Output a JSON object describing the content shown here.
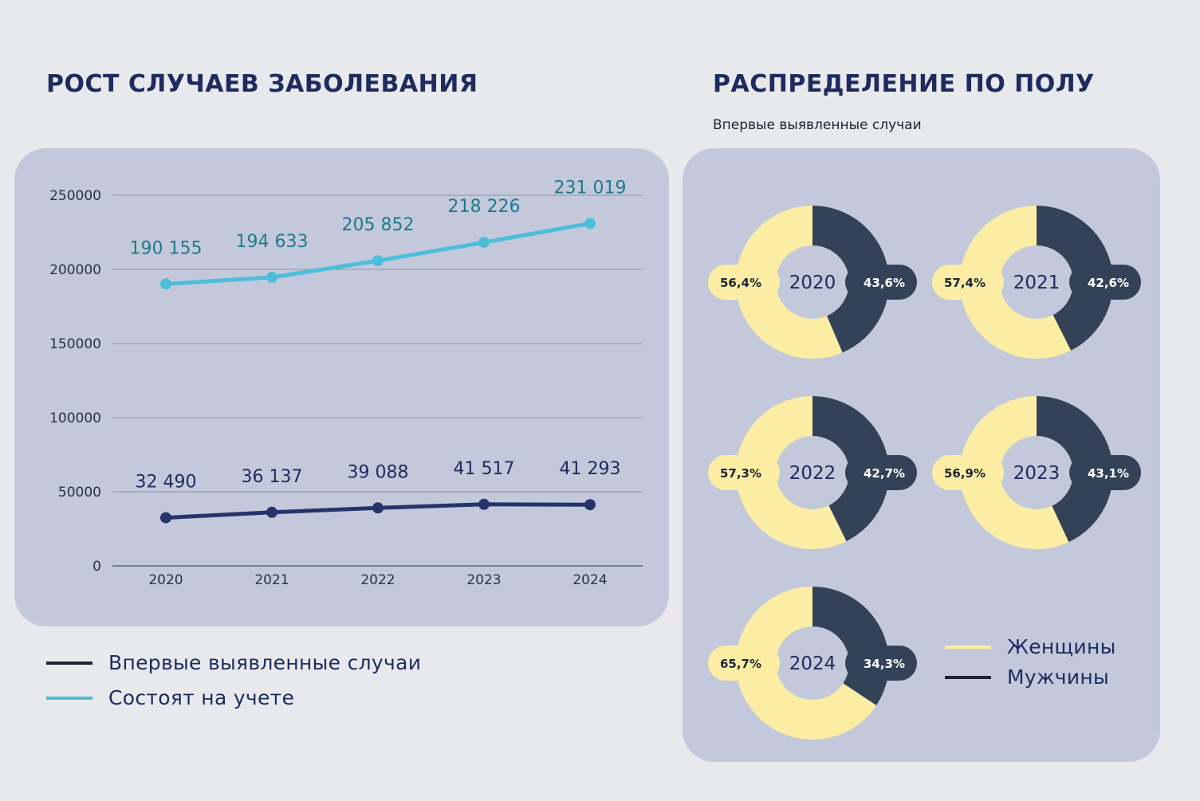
{
  "left": {
    "title": "РОСТ СЛУЧАЕВ ЗАБОЛЕВАНИЯ",
    "legend": [
      {
        "label": "Впервые выявленные случаи",
        "color": "#1e2433"
      },
      {
        "label": "Состоят на учете",
        "color": "#4dbdd9"
      }
    ]
  },
  "right": {
    "title": "РАСПРЕДЕЛЕНИЕ ПО ПОЛУ",
    "subtitle": "Впервые выявленные случаи",
    "legend": [
      {
        "label": "Женщины",
        "color": "#fbeea4"
      },
      {
        "label": "Мужчины",
        "color": "#1e2433"
      }
    ]
  },
  "chart_data": [
    {
      "type": "line",
      "categories": [
        "2020",
        "2021",
        "2022",
        "2023",
        "2024"
      ],
      "y_ticks": [
        "0",
        "50000",
        "100000",
        "150000",
        "200000",
        "250000"
      ],
      "ylim": [
        0,
        250000
      ],
      "grid": true,
      "series": [
        {
          "name": "Состоят на учете",
          "color": "#4dbdd9",
          "label_color": "#1e7a8c",
          "values": [
            190155,
            194633,
            205852,
            218226,
            231019
          ],
          "labels": [
            "190 155",
            "194 633",
            "205 852",
            "218 226",
            "231 019"
          ]
        },
        {
          "name": "Впервые выявленные случаи",
          "color": "#26346b",
          "label_color": "#1d2b5e",
          "values": [
            32490,
            36137,
            39088,
            41517,
            41293
          ],
          "labels": [
            "32 490",
            "36 137",
            "39 088",
            "41 517",
            "41 293"
          ]
        }
      ]
    },
    {
      "type": "pie",
      "variant": "donut",
      "legend": "right",
      "colors": {
        "women": "#fbeea4",
        "men": "#344257"
      },
      "donuts": [
        {
          "year": "2020",
          "women": 56.4,
          "men": 43.6,
          "women_label": "56,4%",
          "men_label": "43,6%"
        },
        {
          "year": "2021",
          "women": 57.4,
          "men": 42.6,
          "women_label": "57,4%",
          "men_label": "42,6%"
        },
        {
          "year": "2022",
          "women": 57.3,
          "men": 42.7,
          "women_label": "57,3%",
          "men_label": "42,7%"
        },
        {
          "year": "2023",
          "women": 56.9,
          "men": 43.1,
          "women_label": "56,9%",
          "men_label": "43,1%"
        },
        {
          "year": "2024",
          "women": 65.7,
          "men": 34.3,
          "women_label": "65,7%",
          "men_label": "34,3%"
        }
      ]
    }
  ]
}
